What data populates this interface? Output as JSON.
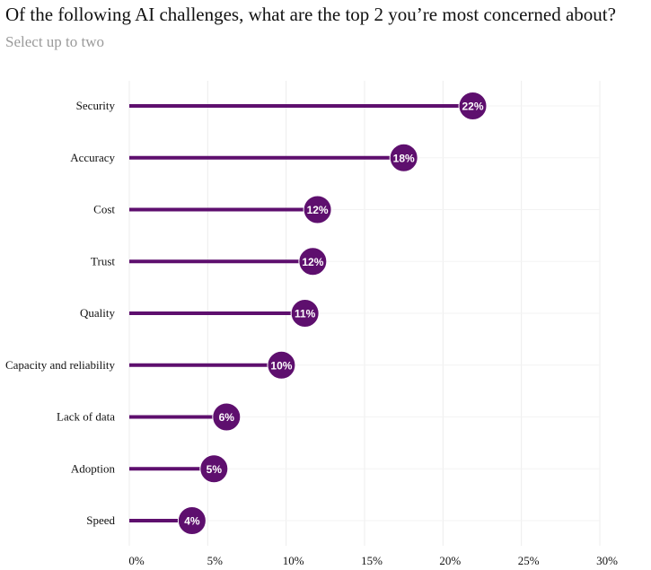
{
  "header": {
    "title": "Of the following AI challenges, what are the top 2 you’re most concerned about?",
    "subtitle": "Select up to two"
  },
  "colors": {
    "accent": "#5e0f6e",
    "grid": "#ececec",
    "label_text": "#ffffff"
  },
  "chart_data": {
    "type": "lollipop",
    "title": "Of the following AI challenges, what are the top 2 you’re most concerned about?",
    "subtitle": "Select up to two",
    "xlabel": "",
    "ylabel": "",
    "xlim": [
      0,
      30
    ],
    "x_ticks": [
      0,
      5,
      10,
      15,
      20,
      25,
      30
    ],
    "x_tick_labels": [
      "0%",
      "5%",
      "10%",
      "15%",
      "20%",
      "25%",
      "30%"
    ],
    "grid": true,
    "categories": [
      "Security",
      "Accuracy",
      "Cost",
      "Trust",
      "Quality",
      "Capacity and reliability",
      "Lack of data",
      "Adoption",
      "Speed"
    ],
    "values": [
      21.9,
      17.5,
      12.0,
      11.7,
      11.2,
      9.7,
      6.2,
      5.4,
      4.0
    ],
    "data_labels": [
      "22%",
      "18%",
      "12%",
      "12%",
      "11%",
      "10%",
      "6%",
      "5%",
      "4%"
    ]
  }
}
